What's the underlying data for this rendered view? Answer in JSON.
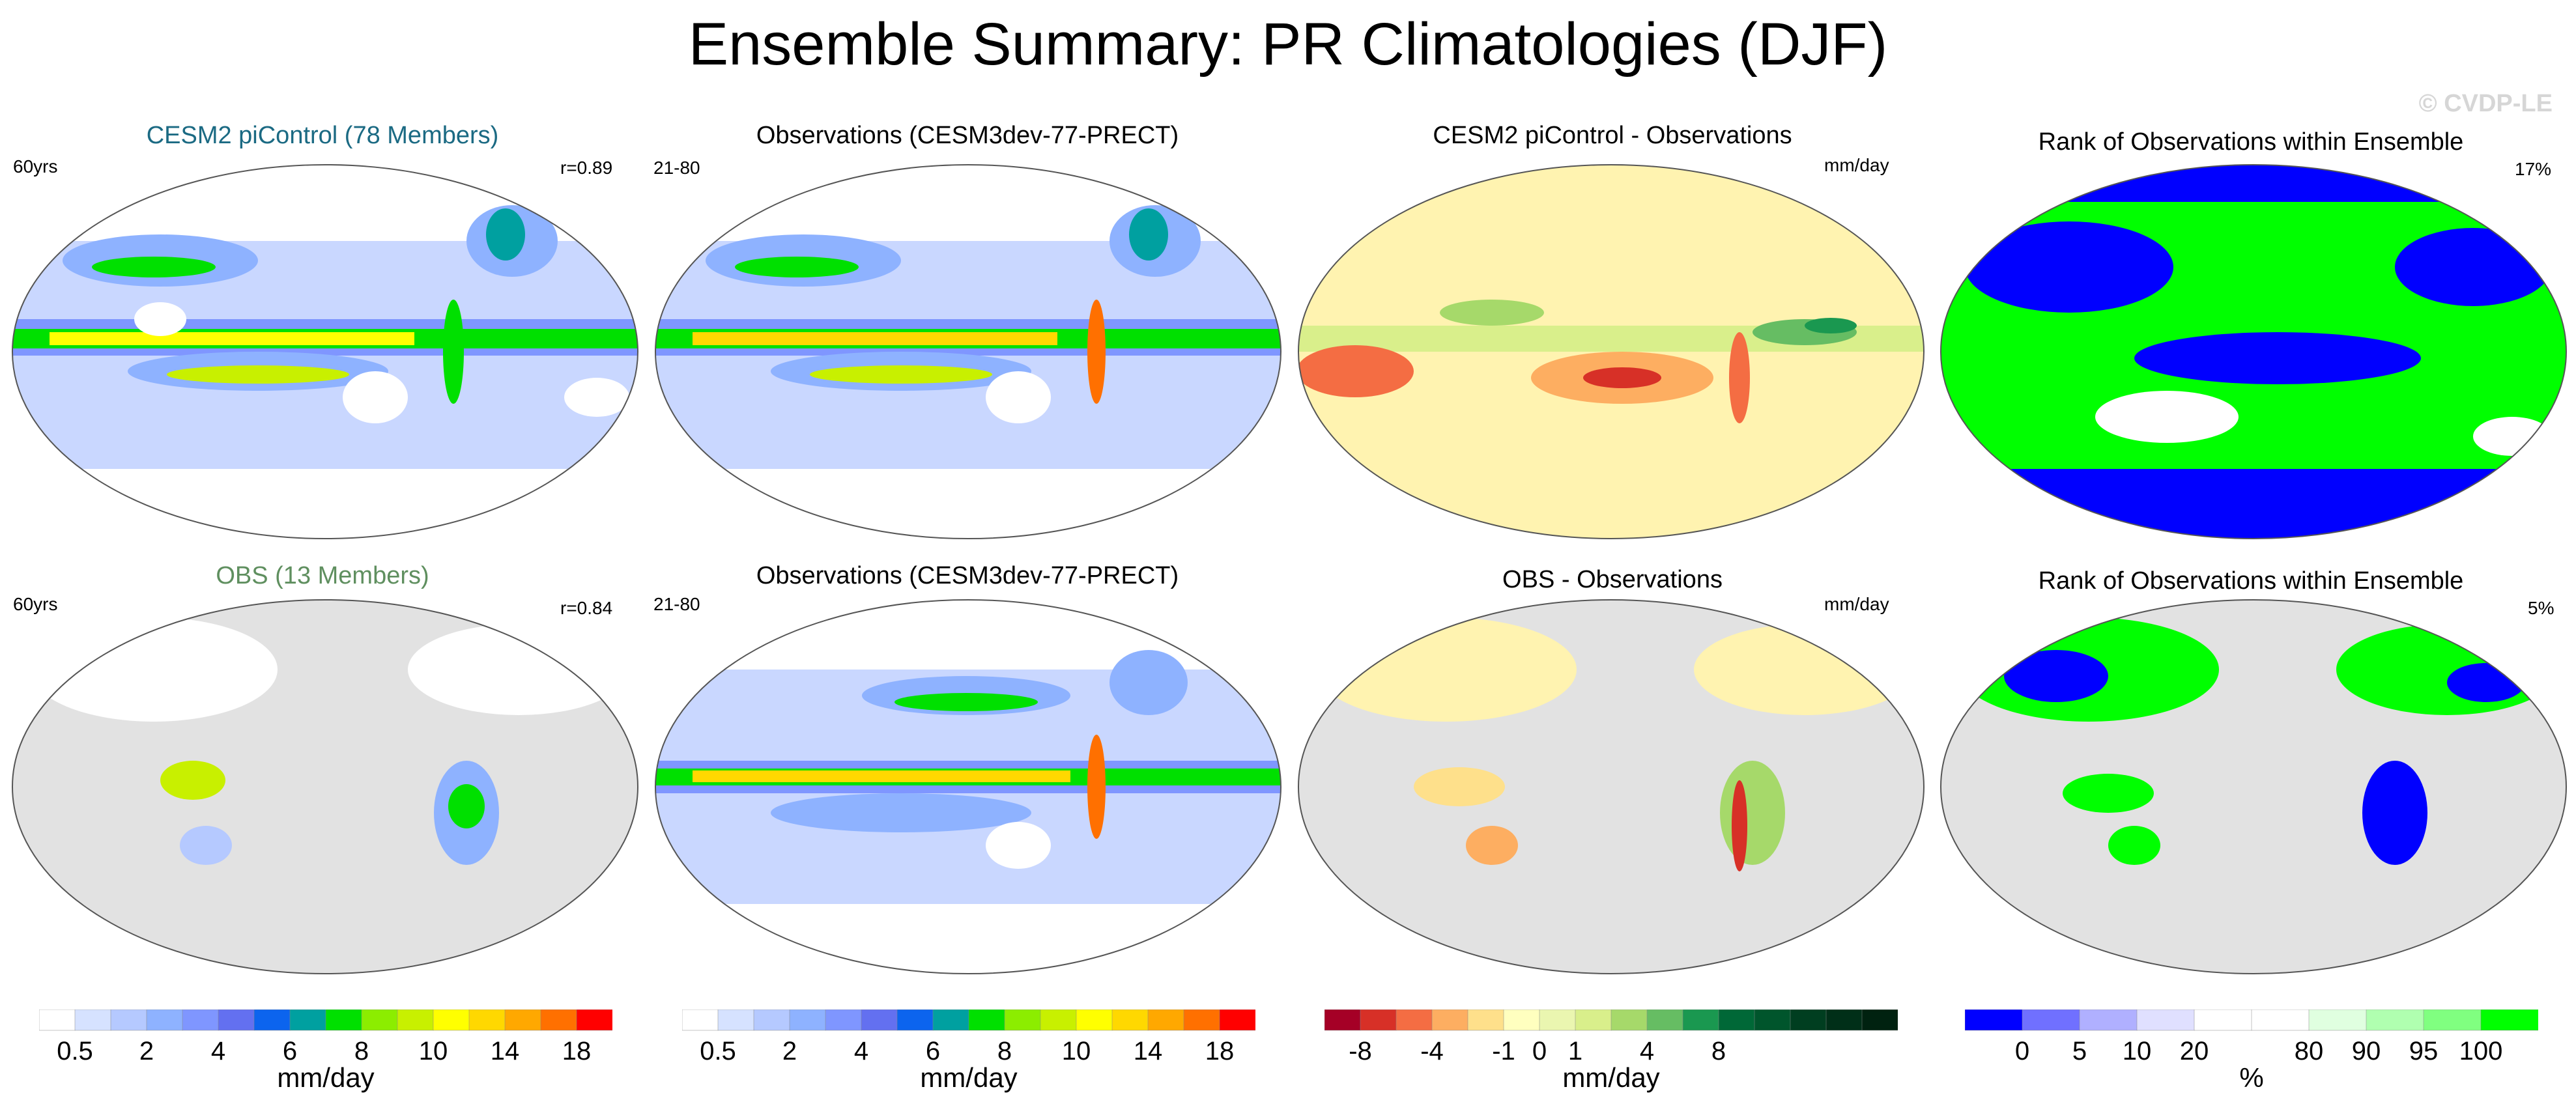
{
  "figure": {
    "title": "Ensemble Summary: PR Climatologies (DJF)",
    "watermark": "© CVDP-LE"
  },
  "colors": {
    "model_title": "#1b6a83",
    "obs_title": "#5f8f5f",
    "land_gray": "#e2e2e2"
  },
  "chart_data": [
    {
      "type": "heatmap",
      "panel": "row1-col1",
      "title": "CESM2 piControl (78 Members)",
      "left_label": "60yrs",
      "right_label": "r=0.89",
      "variable": "PR climatology DJF",
      "units": "mm/day"
    },
    {
      "type": "heatmap",
      "panel": "row1-col2",
      "title": "Observations (CESM3dev-77-PRECT)",
      "left_label": "21-80",
      "right_label": "",
      "units": "mm/day"
    },
    {
      "type": "heatmap",
      "panel": "row1-col3",
      "title": "CESM2 piControl - Observations",
      "left_label": "",
      "right_label": "mm/day",
      "units": "mm/day"
    },
    {
      "type": "heatmap",
      "panel": "row1-col4",
      "title": "Rank of Observations within Ensemble",
      "left_label": "",
      "right_label": "17%",
      "units": "%"
    },
    {
      "type": "heatmap",
      "panel": "row2-col1",
      "title": "OBS (13 Members)",
      "left_label": "60yrs",
      "right_label": "r=0.84",
      "units": "mm/day"
    },
    {
      "type": "heatmap",
      "panel": "row2-col2",
      "title": "Observations (CESM3dev-77-PRECT)",
      "left_label": "21-80",
      "right_label": "",
      "units": "mm/day"
    },
    {
      "type": "heatmap",
      "panel": "row2-col3",
      "title": "OBS - Observations",
      "left_label": "",
      "right_label": "mm/day",
      "units": "mm/day"
    },
    {
      "type": "heatmap",
      "panel": "row2-col4",
      "title": "Rank of Observations within Ensemble",
      "left_label": "",
      "right_label": "5%",
      "units": "%"
    }
  ],
  "colorbars": [
    {
      "name": "precip-colorbar-1",
      "unit": "mm/day",
      "colors": [
        "#ffffff",
        "#d6e2ff",
        "#b5c9ff",
        "#8eb2ff",
        "#7f96ff",
        "#6370f0",
        "#0c64ee",
        "#00a0a0",
        "#00e000",
        "#8ced00",
        "#c8f000",
        "#ffff00",
        "#ffd800",
        "#ffa800",
        "#ff7000",
        "#ff0000"
      ],
      "labels": [
        "0.5",
        "2",
        "4",
        "6",
        "8",
        "10",
        "14",
        "18"
      ],
      "label_positions": [
        1,
        3,
        5,
        7,
        9,
        11,
        13,
        15
      ]
    },
    {
      "name": "precip-colorbar-2",
      "unit": "mm/day",
      "colors": [
        "#ffffff",
        "#d6e2ff",
        "#b5c9ff",
        "#8eb2ff",
        "#7f96ff",
        "#6370f0",
        "#0c64ee",
        "#00a0a0",
        "#00e000",
        "#8ced00",
        "#c8f000",
        "#ffff00",
        "#ffd800",
        "#ffa800",
        "#ff7000",
        "#ff0000"
      ],
      "labels": [
        "0.5",
        "2",
        "4",
        "6",
        "8",
        "10",
        "14",
        "18"
      ],
      "label_positions": [
        1,
        3,
        5,
        7,
        9,
        11,
        13,
        15
      ]
    },
    {
      "name": "difference-colorbar",
      "unit": "mm/day",
      "colors": [
        "#a50026",
        "#d73027",
        "#f46d43",
        "#fdae61",
        "#fee08b",
        "#ffffbf",
        "#eaf6b0",
        "#d9ef8b",
        "#a6d96a",
        "#66bd63",
        "#1a9850",
        "#006837",
        "#00552c",
        "#003e20",
        "#002f18",
        "#002210"
      ],
      "labels": [
        "-8",
        "-4",
        "-1",
        "0",
        "1",
        "4",
        "8"
      ],
      "label_positions": [
        1,
        3,
        5,
        6,
        7,
        9,
        11
      ]
    },
    {
      "name": "rank-colorbar",
      "unit": "%",
      "colors": [
        "#0000ff",
        "#7070ff",
        "#b0b0ff",
        "#e0e0ff",
        "#ffffff",
        "#ffffff",
        "#e0ffe0",
        "#b0ffb0",
        "#80ff80",
        "#00ff00"
      ],
      "labels": [
        "0",
        "5",
        "10",
        "20",
        "80",
        "90",
        "95",
        "100"
      ],
      "label_positions": [
        1,
        2,
        3,
        4,
        6,
        7,
        8,
        9
      ]
    }
  ]
}
